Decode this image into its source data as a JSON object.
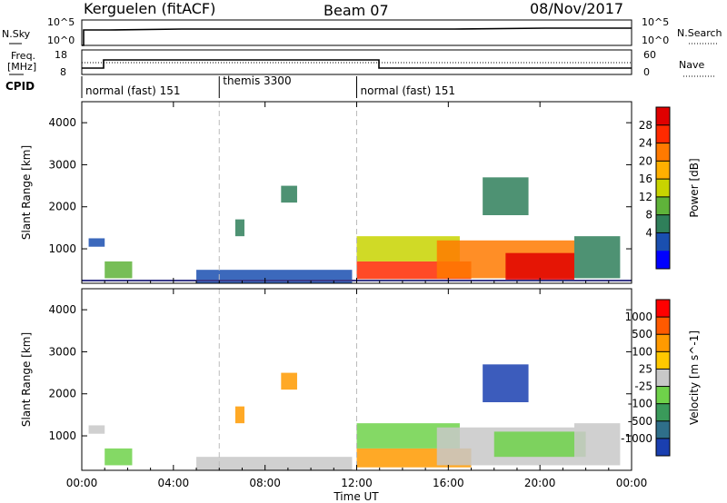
{
  "header": {
    "station": "Kerguelen (fitACF)",
    "beam": "Beam 07",
    "date": "08/Nov/2017"
  },
  "sky_panel": {
    "left_label": "N.Sky",
    "right_label": "N.Search",
    "left_ticks": [
      "10^5",
      "10^0"
    ],
    "right_ticks": [
      "10^5",
      "10^0"
    ]
  },
  "freq_panel": {
    "left_label_1": "Freq.",
    "left_label_2": "[MHz]",
    "left_ticks": [
      "18",
      "8"
    ],
    "right_ticks": [
      "60",
      "0"
    ],
    "right_label": "Nave"
  },
  "cpid": {
    "label": "CPID",
    "segments": [
      {
        "label": "normal (fast) 151",
        "start_h": 0,
        "end_h": 6
      },
      {
        "label": "themis 3300",
        "start_h": 6,
        "end_h": 12
      },
      {
        "label": "normal (fast) 151",
        "start_h": 12,
        "end_h": 24
      }
    ]
  },
  "colors": {
    "power": [
      "#0000ff",
      "#1a4fb0",
      "#2f7f5a",
      "#5fb33a",
      "#c8d400",
      "#ffb000",
      "#ff7a00",
      "#ff2a00",
      "#e00000"
    ],
    "velocity": [
      "#1a3fb0",
      "#2f6f8a",
      "#3a9a5a",
      "#6fd24a",
      "#c8c8c8",
      "#ffc800",
      "#ff9a00",
      "#ff5a00",
      "#ff0000"
    ],
    "ground": "#3a3a8a"
  },
  "chart_data": [
    {
      "type": "heatmap",
      "title": "Power",
      "xlabel": "Time UT",
      "ylabel": "Slant Range [km]",
      "colorbar_label": "Power [dB]",
      "colorbar_ticks": [
        "28",
        "24",
        "20",
        "16",
        "12",
        "8",
        "4"
      ],
      "xlim": [
        0,
        24
      ],
      "ylim": [
        180,
        4500
      ],
      "x_ticks": [
        "00:00",
        "04:00",
        "08:00",
        "12:00",
        "16:00",
        "20:00",
        "00:00"
      ],
      "y_ticks": [
        "1000",
        "2000",
        "3000",
        "4000"
      ],
      "regions": [
        {
          "t0": 0.3,
          "t1": 1.0,
          "r0": 1050,
          "r1": 1250,
          "c": 1
        },
        {
          "t0": 1.0,
          "t1": 2.2,
          "r0": 300,
          "r1": 700,
          "c": 3
        },
        {
          "t0": 5.0,
          "t1": 11.8,
          "r0": 180,
          "r1": 500,
          "c": 1
        },
        {
          "t0": 6.7,
          "t1": 7.1,
          "r0": 1300,
          "r1": 1700,
          "c": 2
        },
        {
          "t0": 8.7,
          "t1": 9.4,
          "r0": 2100,
          "r1": 2500,
          "c": 2
        },
        {
          "t0": 12.0,
          "t1": 17.0,
          "r0": 280,
          "r1": 700,
          "c": 7
        },
        {
          "t0": 12.0,
          "t1": 16.5,
          "r0": 700,
          "r1": 1300,
          "c": 4
        },
        {
          "t0": 15.5,
          "t1": 21.5,
          "r0": 300,
          "r1": 1200,
          "c": 6
        },
        {
          "t0": 18.5,
          "t1": 21.5,
          "r0": 250,
          "r1": 900,
          "c": 8
        },
        {
          "t0": 17.5,
          "t1": 19.5,
          "r0": 1800,
          "r1": 2700,
          "c": 2
        },
        {
          "t0": 21.5,
          "t1": 23.5,
          "r0": 300,
          "r1": 1300,
          "c": 2
        }
      ]
    },
    {
      "type": "heatmap",
      "title": "Velocity",
      "xlabel": "Time UT",
      "ylabel": "Slant Range [km]",
      "colorbar_label": "Velocity [m s^-1]",
      "colorbar_ticks": [
        "1000",
        "500",
        "100",
        "25",
        "-25",
        "-100",
        "-500",
        "-1000"
      ],
      "xlim": [
        0,
        24
      ],
      "ylim": [
        180,
        4500
      ],
      "x_ticks": [
        "00:00",
        "04:00",
        "08:00",
        "12:00",
        "16:00",
        "20:00",
        "00:00"
      ],
      "y_ticks": [
        "1000",
        "2000",
        "3000",
        "4000"
      ],
      "regions": [
        {
          "t0": 0.3,
          "t1": 1.0,
          "r0": 1050,
          "r1": 1250,
          "c": 4
        },
        {
          "t0": 1.0,
          "t1": 2.2,
          "r0": 300,
          "r1": 700,
          "c": 3
        },
        {
          "t0": 5.0,
          "t1": 11.8,
          "r0": 180,
          "r1": 500,
          "c": 4
        },
        {
          "t0": 6.7,
          "t1": 7.1,
          "r0": 1300,
          "r1": 1700,
          "c": 6
        },
        {
          "t0": 8.7,
          "t1": 9.4,
          "r0": 2100,
          "r1": 2500,
          "c": 6
        },
        {
          "t0": 12.0,
          "t1": 17.0,
          "r0": 250,
          "r1": 700,
          "c": 6
        },
        {
          "t0": 12.0,
          "t1": 16.5,
          "r0": 700,
          "r1": 1300,
          "c": 3
        },
        {
          "t0": 15.5,
          "t1": 21.5,
          "r0": 300,
          "r1": 1200,
          "c": 4
        },
        {
          "t0": 18.0,
          "t1": 22.0,
          "r0": 500,
          "r1": 1100,
          "c": 3
        },
        {
          "t0": 17.5,
          "t1": 19.5,
          "r0": 1800,
          "r1": 2700,
          "c": 0
        },
        {
          "t0": 21.5,
          "t1": 23.5,
          "r0": 300,
          "r1": 1300,
          "c": 4
        }
      ]
    }
  ]
}
